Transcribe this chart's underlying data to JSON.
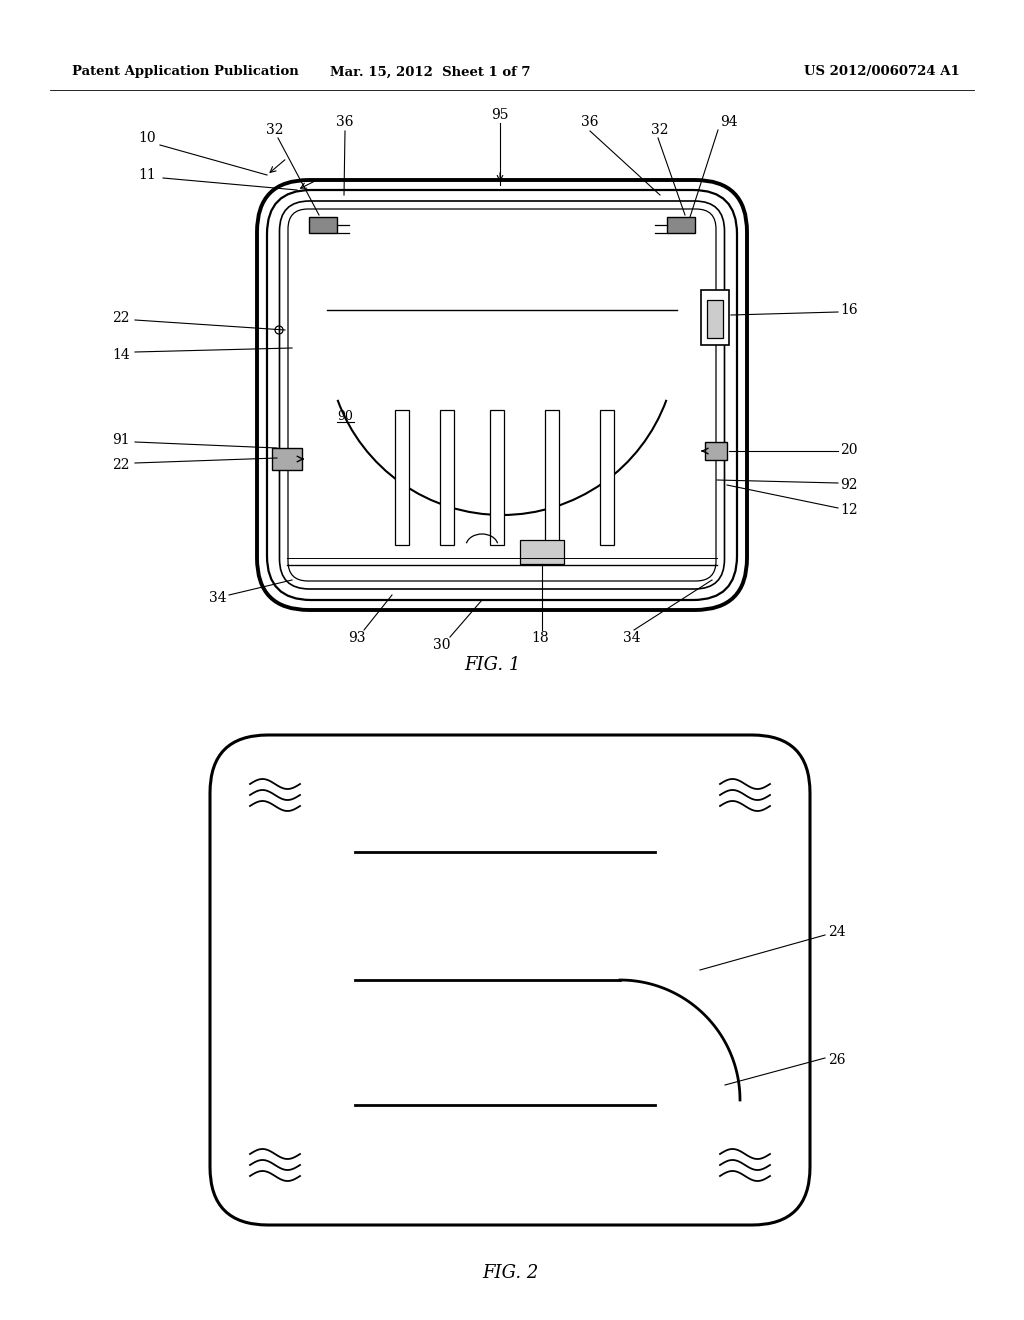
{
  "bg_color": "#ffffff",
  "text_color": "#000000",
  "header_left": "Patent Application Publication",
  "header_mid": "Mar. 15, 2012  Sheet 1 of 7",
  "header_right": "US 2012/0060724 A1",
  "fig1_caption": "FIG. 1",
  "fig2_caption": "FIG. 2",
  "line_color": "#000000"
}
